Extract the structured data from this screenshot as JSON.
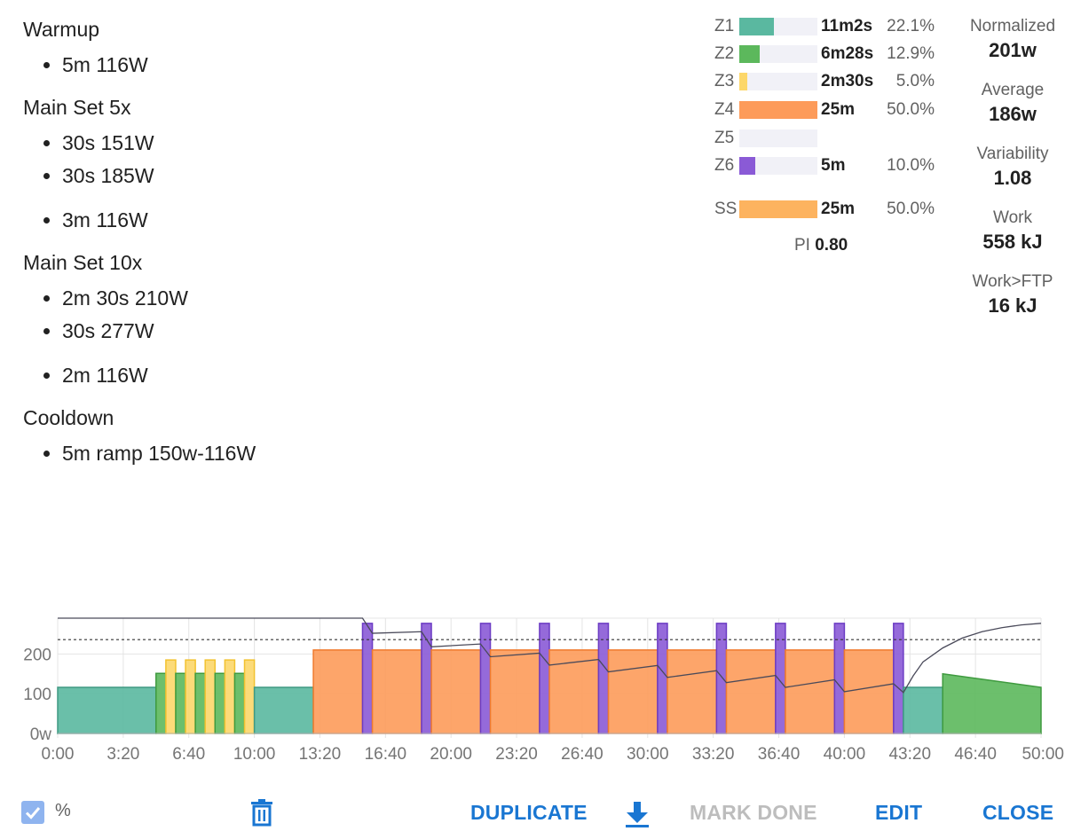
{
  "workout": {
    "groups": [
      {
        "title": "Warmup",
        "steps": [
          {
            "text": "5m 116W",
            "gap": false
          }
        ]
      },
      {
        "title": "Main Set 5x",
        "steps": [
          {
            "text": "30s 151W",
            "gap": false
          },
          {
            "text": "30s 185W",
            "gap": false
          },
          {
            "text": "3m 116W",
            "gap": true
          }
        ]
      },
      {
        "title": "Main Set 10x",
        "steps": [
          {
            "text": "2m 30s 210W",
            "gap": false
          },
          {
            "text": "30s 277W",
            "gap": false
          },
          {
            "text": "2m 116W",
            "gap": true
          }
        ]
      },
      {
        "title": "Cooldown",
        "steps": [
          {
            "text": "5m ramp 150w-116W",
            "gap": false
          }
        ]
      }
    ]
  },
  "zones": [
    {
      "name": "Z1",
      "time": "11m2s",
      "percent": "22.1%",
      "fraction": 0.221,
      "color": "#5ab8a0"
    },
    {
      "name": "Z2",
      "time": "6m28s",
      "percent": "12.9%",
      "fraction": 0.129,
      "color": "#5cb85c"
    },
    {
      "name": "Z3",
      "time": "2m30s",
      "percent": "5.0%",
      "fraction": 0.05,
      "color": "#fcd76a"
    },
    {
      "name": "Z4",
      "time": "25m",
      "percent": "50.0%",
      "fraction": 0.5,
      "color": "#fd9b5a"
    },
    {
      "name": "Z5",
      "time": "",
      "percent": "",
      "fraction": 0,
      "color": "#ef6c6c"
    },
    {
      "name": "Z6",
      "time": "5m",
      "percent": "10.0%",
      "fraction": 0.1,
      "color": "#8a5ad6"
    },
    {
      "name": "SS",
      "time": "25m",
      "percent": "50.0%",
      "fraction": 0.5,
      "color": "#fdb35f"
    }
  ],
  "pi": {
    "label": "PI",
    "value": "0.80"
  },
  "stats": [
    {
      "label": "Normalized",
      "value": "201w"
    },
    {
      "label": "Average",
      "value": "186w"
    },
    {
      "label": "Variability",
      "value": "1.08"
    },
    {
      "label": "Work",
      "value": "558 kJ"
    },
    {
      "label": "Work>FTP",
      "value": "16 kJ"
    }
  ],
  "chart_data": {
    "type": "area",
    "x_unit": "minutes",
    "xlim": [
      0,
      50
    ],
    "ylim": [
      0,
      290
    ],
    "x_ticks": [
      {
        "value": 0,
        "label": "0:00"
      },
      {
        "value": 3.333,
        "label": "3:20"
      },
      {
        "value": 6.667,
        "label": "6:40"
      },
      {
        "value": 10,
        "label": "10:00"
      },
      {
        "value": 13.333,
        "label": "13:20"
      },
      {
        "value": 16.667,
        "label": "16:40"
      },
      {
        "value": 20,
        "label": "20:00"
      },
      {
        "value": 23.333,
        "label": "23:20"
      },
      {
        "value": 26.667,
        "label": "26:40"
      },
      {
        "value": 30,
        "label": "30:00"
      },
      {
        "value": 33.333,
        "label": "33:20"
      },
      {
        "value": 36.667,
        "label": "36:40"
      },
      {
        "value": 40,
        "label": "40:00"
      },
      {
        "value": 43.333,
        "label": "43:20"
      },
      {
        "value": 46.667,
        "label": "46:40"
      },
      {
        "value": 50,
        "label": "50:00"
      }
    ],
    "y_ticks": [
      {
        "value": 0,
        "label": "0w"
      },
      {
        "value": 100,
        "label": "100"
      },
      {
        "value": 200,
        "label": "200"
      }
    ],
    "ftp_line": 236,
    "grid": true,
    "segments": [
      {
        "start": 0,
        "end": 5,
        "power": 116,
        "end_power": 116,
        "zone": "Z1"
      },
      {
        "start": 5,
        "end": 5.5,
        "power": 151,
        "end_power": 151,
        "zone": "Z2"
      },
      {
        "start": 5.5,
        "end": 6,
        "power": 185,
        "end_power": 185,
        "zone": "Z3"
      },
      {
        "start": 6,
        "end": 6.5,
        "power": 151,
        "end_power": 151,
        "zone": "Z2"
      },
      {
        "start": 6.5,
        "end": 7,
        "power": 185,
        "end_power": 185,
        "zone": "Z3"
      },
      {
        "start": 7,
        "end": 7.5,
        "power": 151,
        "end_power": 151,
        "zone": "Z2"
      },
      {
        "start": 7.5,
        "end": 8,
        "power": 185,
        "end_power": 185,
        "zone": "Z3"
      },
      {
        "start": 8,
        "end": 8.5,
        "power": 151,
        "end_power": 151,
        "zone": "Z2"
      },
      {
        "start": 8.5,
        "end": 9,
        "power": 185,
        "end_power": 185,
        "zone": "Z3"
      },
      {
        "start": 9,
        "end": 9.5,
        "power": 151,
        "end_power": 151,
        "zone": "Z2"
      },
      {
        "start": 9.5,
        "end": 10,
        "power": 185,
        "end_power": 185,
        "zone": "Z3"
      },
      {
        "start": 10,
        "end": 13,
        "power": 116,
        "end_power": 116,
        "zone": "Z1"
      },
      {
        "start": 13,
        "end": 15.5,
        "power": 210,
        "end_power": 210,
        "zone": "Z4"
      },
      {
        "start": 15.5,
        "end": 16,
        "power": 277,
        "end_power": 277,
        "zone": "Z6"
      },
      {
        "start": 16,
        "end": 18.5,
        "power": 210,
        "end_power": 210,
        "zone": "Z4"
      },
      {
        "start": 18.5,
        "end": 19,
        "power": 277,
        "end_power": 277,
        "zone": "Z6"
      },
      {
        "start": 19,
        "end": 21.5,
        "power": 210,
        "end_power": 210,
        "zone": "Z4"
      },
      {
        "start": 21.5,
        "end": 22,
        "power": 277,
        "end_power": 277,
        "zone": "Z6"
      },
      {
        "start": 22,
        "end": 24.5,
        "power": 210,
        "end_power": 210,
        "zone": "Z4"
      },
      {
        "start": 24.5,
        "end": 25,
        "power": 277,
        "end_power": 277,
        "zone": "Z6"
      },
      {
        "start": 25,
        "end": 27.5,
        "power": 210,
        "end_power": 210,
        "zone": "Z4"
      },
      {
        "start": 27.5,
        "end": 28,
        "power": 277,
        "end_power": 277,
        "zone": "Z6"
      },
      {
        "start": 28,
        "end": 30.5,
        "power": 210,
        "end_power": 210,
        "zone": "Z4"
      },
      {
        "start": 30.5,
        "end": 31,
        "power": 277,
        "end_power": 277,
        "zone": "Z6"
      },
      {
        "start": 31,
        "end": 33.5,
        "power": 210,
        "end_power": 210,
        "zone": "Z4"
      },
      {
        "start": 33.5,
        "end": 34,
        "power": 277,
        "end_power": 277,
        "zone": "Z6"
      },
      {
        "start": 34,
        "end": 36.5,
        "power": 210,
        "end_power": 210,
        "zone": "Z4"
      },
      {
        "start": 36.5,
        "end": 37,
        "power": 277,
        "end_power": 277,
        "zone": "Z6"
      },
      {
        "start": 37,
        "end": 39.5,
        "power": 210,
        "end_power": 210,
        "zone": "Z4"
      },
      {
        "start": 39.5,
        "end": 40,
        "power": 277,
        "end_power": 277,
        "zone": "Z6"
      },
      {
        "start": 40,
        "end": 42.5,
        "power": 210,
        "end_power": 210,
        "zone": "Z4"
      },
      {
        "start": 42.5,
        "end": 43,
        "power": 277,
        "end_power": 277,
        "zone": "Z6"
      },
      {
        "start": 43,
        "end": 45,
        "power": 116,
        "end_power": 116,
        "zone": "Z1"
      },
      {
        "start": 45,
        "end": 50,
        "power": 150,
        "end_power": 116,
        "zone": "Z2"
      }
    ],
    "balance_line": [
      [
        0,
        290
      ],
      [
        15.5,
        290
      ],
      [
        16,
        252
      ],
      [
        18.5,
        256
      ],
      [
        19,
        218
      ],
      [
        21.5,
        225
      ],
      [
        22,
        193
      ],
      [
        24.5,
        202
      ],
      [
        25,
        172
      ],
      [
        27.5,
        186
      ],
      [
        28,
        155
      ],
      [
        30.5,
        171
      ],
      [
        31,
        141
      ],
      [
        33.5,
        158
      ],
      [
        34,
        128
      ],
      [
        36.5,
        146
      ],
      [
        37,
        116
      ],
      [
        39.5,
        135
      ],
      [
        40,
        105
      ],
      [
        42.5,
        125
      ],
      [
        43,
        103
      ],
      [
        43.5,
        145
      ],
      [
        44,
        180
      ],
      [
        45,
        215
      ],
      [
        46,
        240
      ],
      [
        47,
        256
      ],
      [
        48,
        266
      ],
      [
        49,
        273
      ],
      [
        50,
        277
      ]
    ]
  },
  "footer": {
    "percent_label": "%",
    "percent_checked": true,
    "delete_icon": "trash-icon",
    "download_icon": "download-icon",
    "duplicate_label": "DUPLICATE",
    "mark_done_label": "MARK DONE",
    "edit_label": "EDIT",
    "close_label": "CLOSE"
  }
}
